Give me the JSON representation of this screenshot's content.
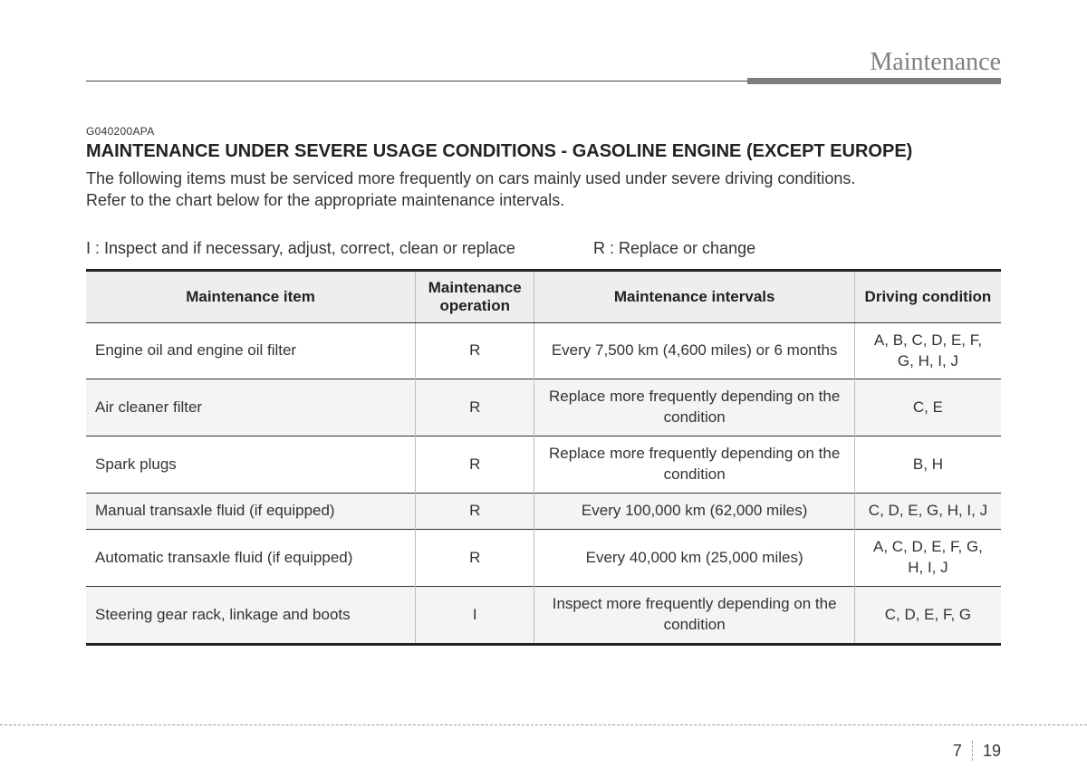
{
  "header": {
    "section_title": "Maintenance"
  },
  "doc": {
    "code": "G040200APA",
    "title": "MAINTENANCE UNDER SEVERE USAGE CONDITIONS - GASOLINE ENGINE (EXCEPT EUROPE)",
    "line1": "The following items must be serviced more frequently on cars mainly used under severe driving conditions.",
    "line2": "Refer to the chart below for the appropriate maintenance intervals."
  },
  "legend": {
    "inspect": "I : Inspect and if necessary, adjust, correct, clean or replace",
    "replace": "R : Replace or change"
  },
  "table": {
    "headers": {
      "item": "Maintenance item",
      "operation": "Maintenance operation",
      "intervals": "Maintenance intervals",
      "condition": "Driving condition"
    },
    "rows": [
      {
        "item": "Engine oil and engine oil filter",
        "op": "R",
        "interval": "Every 7,500 km (4,600 miles) or 6 months",
        "cond": "A, B, C, D, E, F, G, H, I, J"
      },
      {
        "item": "Air cleaner filter",
        "op": "R",
        "interval": "Replace more frequently depending on the condition",
        "cond": "C, E"
      },
      {
        "item": "Spark plugs",
        "op": "R",
        "interval": "Replace more frequently depending on the condition",
        "cond": "B, H"
      },
      {
        "item": "Manual transaxle fluid (if equipped)",
        "op": "R",
        "interval": "Every 100,000 km (62,000 miles)",
        "cond": "C, D, E, G, H, I, J"
      },
      {
        "item": "Automatic transaxle fluid (if equipped)",
        "op": "R",
        "interval": "Every 40,000 km (25,000 miles)",
        "cond": "A, C, D, E, F, G, H, I, J"
      },
      {
        "item": "Steering gear rack, linkage and boots",
        "op": "I",
        "interval": "Inspect more frequently depending on the condition",
        "cond": "C, D, E, F, G"
      }
    ]
  },
  "footer": {
    "section_num": "7",
    "page_num": "19"
  }
}
